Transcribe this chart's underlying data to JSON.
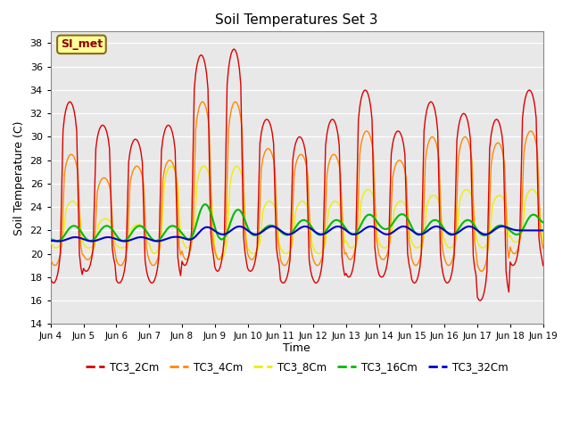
{
  "title": "Soil Temperatures Set 3",
  "xlabel": "Time",
  "ylabel": "Soil Temperature (C)",
  "ylim": [
    14,
    39
  ],
  "yticks": [
    14,
    16,
    18,
    20,
    22,
    24,
    26,
    28,
    30,
    32,
    34,
    36,
    38
  ],
  "bg_color": "#e8e8e8",
  "fig_color": "#ffffff",
  "annotation_text": "SI_met",
  "annotation_bg": "#ffff99",
  "annotation_border": "#8b6914",
  "annotation_text_color": "#8b0000",
  "series": [
    {
      "label": "TC3_2Cm",
      "color": "#dd0000",
      "lw": 1.0
    },
    {
      "label": "TC3_4Cm",
      "color": "#ff8800",
      "lw": 1.0
    },
    {
      "label": "TC3_8Cm",
      "color": "#eeee00",
      "lw": 1.0
    },
    {
      "label": "TC3_16Cm",
      "color": "#00bb00",
      "lw": 1.5
    },
    {
      "label": "TC3_32Cm",
      "color": "#0000cc",
      "lw": 1.5
    }
  ],
  "xtick_labels": [
    "Jun 4",
    "Jun 5",
    "Jun 6",
    "Jun 7",
    "Jun 8",
    "Jun 9",
    "Jun 10",
    "Jun 11",
    "Jun 12",
    "Jun 13",
    "Jun 14",
    "Jun 15",
    "Jun 16",
    "Jun 17",
    "Jun 18",
    "Jun 19"
  ],
  "xtick_positions": [
    0,
    24,
    48,
    72,
    96,
    120,
    144,
    168,
    192,
    216,
    240,
    264,
    288,
    312,
    336,
    360
  ],
  "num_hours": 361,
  "peaks_2cm": [
    33.0,
    31.0,
    29.8,
    31.0,
    37.0,
    37.5,
    31.5,
    30.0,
    31.5,
    34.0,
    30.5,
    33.0,
    32.0,
    31.5,
    34.0,
    19.5
  ],
  "troughs_2cm": [
    17.5,
    18.5,
    17.5,
    17.5,
    19.0,
    18.5,
    18.5,
    17.5,
    17.5,
    18.0,
    18.0,
    17.5,
    17.5,
    16.0,
    19.0,
    19.0
  ],
  "peak_hour_2cm": 14,
  "trough_hour_2cm": 4,
  "peaks_4cm": [
    28.5,
    26.5,
    27.5,
    28.0,
    33.0,
    33.0,
    29.0,
    28.5,
    28.5,
    30.5,
    28.0,
    30.0,
    30.0,
    29.5,
    30.5,
    20.5
  ],
  "troughs_4cm": [
    19.0,
    19.5,
    19.0,
    19.0,
    19.5,
    19.5,
    19.5,
    19.0,
    19.0,
    19.5,
    19.5,
    19.0,
    19.0,
    18.5,
    20.0,
    20.5
  ],
  "peaks_8cm": [
    24.5,
    23.0,
    22.5,
    27.5,
    27.5,
    27.5,
    24.5,
    24.5,
    24.5,
    25.5,
    24.5,
    25.0,
    25.5,
    25.0,
    25.5,
    21.5
  ],
  "troughs_8cm": [
    20.5,
    20.5,
    20.5,
    20.0,
    20.5,
    19.5,
    20.0,
    20.0,
    20.0,
    20.5,
    20.5,
    20.5,
    20.5,
    20.5,
    21.0,
    21.0
  ],
  "peaks_16cm": [
    22.5,
    22.5,
    22.5,
    22.5,
    24.5,
    24.0,
    22.5,
    23.0,
    23.0,
    23.5,
    23.5,
    23.0,
    23.0,
    22.5,
    23.5,
    23.0
  ],
  "troughs_16cm": [
    21.0,
    21.0,
    21.0,
    21.0,
    21.0,
    21.0,
    21.5,
    21.5,
    21.5,
    21.5,
    22.0,
    21.5,
    21.5,
    21.5,
    21.5,
    22.0
  ],
  "peaks_32cm": [
    21.5,
    21.5,
    21.5,
    21.5,
    22.5,
    22.5,
    22.5,
    22.5,
    22.5,
    22.5,
    22.5,
    22.5,
    22.5,
    22.5,
    22.0,
    22.0
  ],
  "troughs_32cm": [
    21.0,
    21.0,
    21.0,
    21.0,
    21.0,
    21.5,
    21.5,
    21.5,
    21.5,
    21.5,
    21.5,
    21.5,
    21.5,
    21.5,
    22.0,
    22.0
  ]
}
